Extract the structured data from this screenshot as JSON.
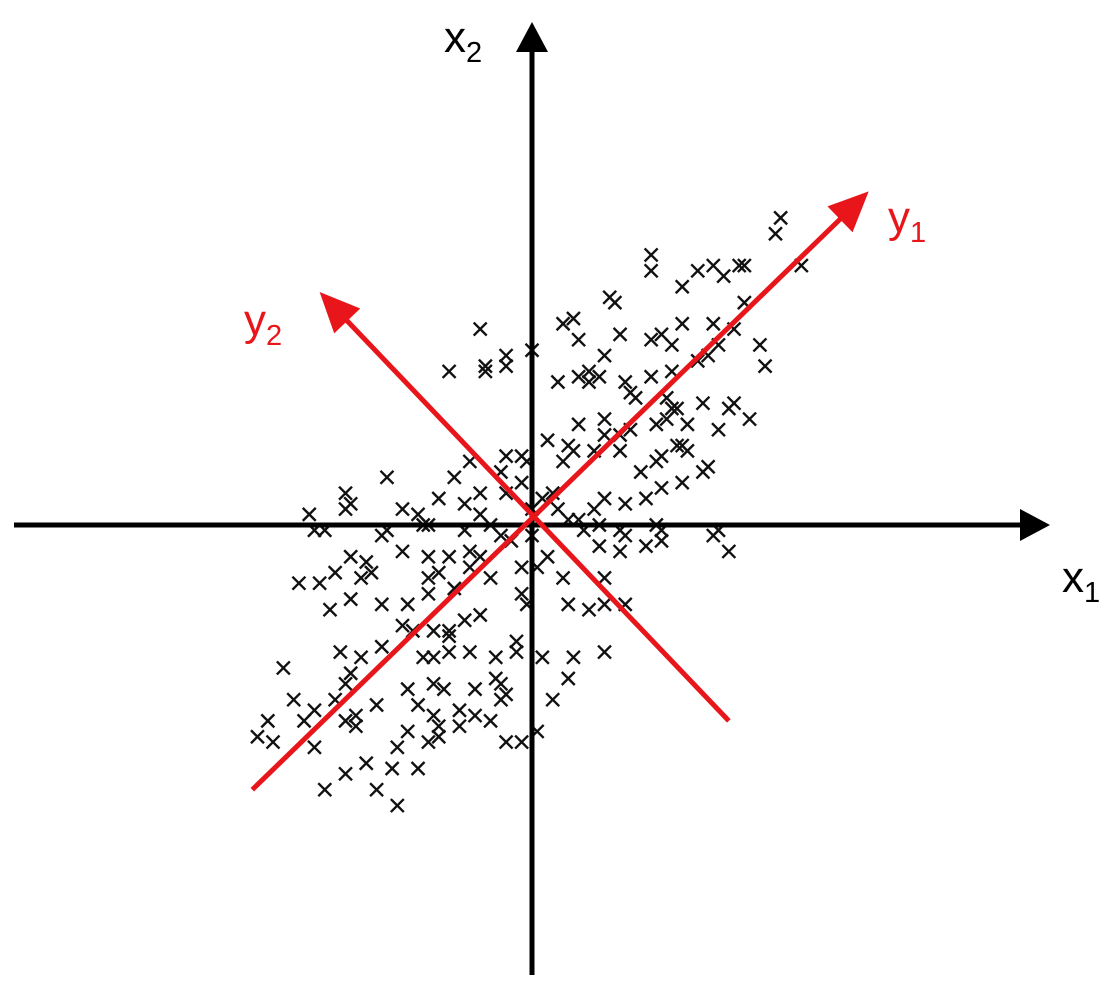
{
  "chart_data": {
    "type": "scatter",
    "marker": "x",
    "title": "",
    "axes": {
      "x1": {
        "label": "x",
        "subscript": "1",
        "color": "#000000"
      },
      "x2": {
        "label": "x",
        "subscript": "2",
        "color": "#000000"
      },
      "y1": {
        "label": "y",
        "subscript": "1",
        "color": "#e8161b"
      },
      "y2": {
        "label": "y",
        "subscript": "2",
        "color": "#e8161b"
      }
    },
    "xlim": [
      -1.0,
      1.0
    ],
    "ylim": [
      -0.85,
      0.95
    ],
    "grid": false,
    "legend": "none",
    "rotated_axes": {
      "y1": {
        "from": [
          -0.54,
          -0.5
        ],
        "to": [
          0.65,
          0.63
        ]
      },
      "y2": {
        "from": [
          0.38,
          -0.37
        ],
        "to": [
          -0.41,
          0.44
        ]
      }
    },
    "points": [
      [
        0.48,
        0.58
      ],
      [
        0.47,
        0.55
      ],
      [
        0.52,
        0.49
      ],
      [
        0.41,
        0.49
      ],
      [
        0.23,
        0.48
      ],
      [
        0.23,
        0.51
      ],
      [
        0.32,
        0.48
      ],
      [
        0.35,
        0.49
      ],
      [
        0.37,
        0.47
      ],
      [
        0.4,
        0.49
      ],
      [
        0.29,
        0.45
      ],
      [
        0.41,
        0.42
      ],
      [
        0.39,
        0.37
      ],
      [
        0.15,
        0.43
      ],
      [
        0.16,
        0.42
      ],
      [
        0.08,
        0.39
      ],
      [
        0.06,
        0.38
      ],
      [
        0.23,
        0.35
      ],
      [
        0.27,
        0.34
      ],
      [
        0.35,
        0.38
      ],
      [
        0.29,
        0.38
      ],
      [
        0.17,
        0.36
      ],
      [
        0.25,
        0.36
      ],
      [
        -0.1,
        0.37
      ],
      [
        0.09,
        0.35
      ],
      [
        0.14,
        0.32
      ],
      [
        0.0,
        0.33
      ],
      [
        0.36,
        0.34
      ],
      [
        0.34,
        0.32
      ],
      [
        0.44,
        0.34
      ],
      [
        0.45,
        0.3
      ],
      [
        0.32,
        0.31
      ],
      [
        0.27,
        0.29
      ],
      [
        -0.05,
        0.32
      ],
      [
        0.18,
        0.27
      ],
      [
        0.23,
        0.28
      ],
      [
        -0.09,
        0.3
      ],
      [
        -0.09,
        0.29
      ],
      [
        -0.16,
        0.29
      ],
      [
        -0.05,
        0.3
      ],
      [
        0.09,
        0.28
      ],
      [
        0.11,
        0.29
      ],
      [
        0.13,
        0.28
      ],
      [
        0.11,
        0.27
      ],
      [
        0.05,
        0.27
      ],
      [
        0.19,
        0.25
      ],
      [
        0.2,
        0.24
      ],
      [
        0.26,
        0.24
      ],
      [
        0.27,
        0.22
      ],
      [
        0.28,
        0.22
      ],
      [
        0.26,
        0.2
      ],
      [
        0.3,
        0.19
      ],
      [
        0.33,
        0.23
      ],
      [
        0.36,
        0.18
      ],
      [
        0.29,
        0.15
      ],
      [
        0.24,
        0.19
      ],
      [
        0.39,
        0.23
      ],
      [
        0.42,
        0.2
      ],
      [
        0.38,
        0.22
      ],
      [
        0.09,
        0.19
      ],
      [
        0.14,
        0.2
      ],
      [
        0.14,
        0.17
      ],
      [
        0.07,
        0.15
      ],
      [
        0.03,
        0.16
      ],
      [
        0.08,
        0.14
      ],
      [
        0.12,
        0.14
      ],
      [
        0.17,
        0.17
      ],
      [
        0.19,
        0.18
      ],
      [
        0.17,
        0.14
      ],
      [
        0.25,
        0.13
      ],
      [
        0.24,
        0.12
      ],
      [
        0.28,
        0.15
      ],
      [
        0.3,
        0.14
      ],
      [
        0.25,
        0.07
      ],
      [
        0.21,
        0.1
      ],
      [
        0.34,
        0.11
      ],
      [
        0.33,
        0.1
      ],
      [
        0.29,
        0.08
      ],
      [
        0.22,
        0.05
      ],
      [
        0.18,
        0.04
      ],
      [
        0.14,
        0.05
      ],
      [
        0.12,
        0.03
      ],
      [
        0.06,
        0.12
      ],
      [
        -0.02,
        0.13
      ],
      [
        -0.01,
        0.12
      ],
      [
        -0.02,
        0.08
      ],
      [
        0.02,
        0.05
      ],
      [
        0.04,
        0.06
      ],
      [
        -0.05,
        0.13
      ],
      [
        -0.12,
        0.12
      ],
      [
        -0.15,
        0.09
      ],
      [
        -0.06,
        0.1
      ],
      [
        -0.1,
        0.06
      ],
      [
        -0.05,
        0.06
      ],
      [
        -0.1,
        0.02
      ],
      [
        -0.13,
        0.04
      ],
      [
        -0.18,
        0.05
      ],
      [
        -0.25,
        0.03
      ],
      [
        -0.28,
        0.09
      ],
      [
        -0.36,
        0.06
      ],
      [
        -0.43,
        0.02
      ],
      [
        -0.35,
        0.04
      ],
      [
        -0.36,
        0.03
      ],
      [
        -0.28,
        -0.01
      ],
      [
        -0.42,
        -0.01
      ],
      [
        -0.4,
        -0.01
      ],
      [
        -0.29,
        -0.02
      ],
      [
        -0.21,
        0.0
      ],
      [
        -0.2,
        0.0
      ],
      [
        -0.22,
        0.02
      ],
      [
        -0.13,
        -0.01
      ],
      [
        -0.08,
        0.0
      ],
      [
        -0.06,
        -0.02
      ],
      [
        0.0,
        0.03
      ],
      [
        0.05,
        0.03
      ],
      [
        0.07,
        0.01
      ],
      [
        0.09,
        0.01
      ],
      [
        0.13,
        0.0
      ],
      [
        0.17,
        -0.01
      ],
      [
        0.24,
        0.0
      ],
      [
        0.25,
        -0.01
      ],
      [
        0.35,
        -0.02
      ],
      [
        0.36,
        -0.01
      ],
      [
        0.38,
        -0.05
      ],
      [
        0.25,
        -0.03
      ],
      [
        0.18,
        -0.02
      ],
      [
        0.22,
        -0.04
      ],
      [
        0.17,
        -0.05
      ],
      [
        0.13,
        -0.04
      ],
      [
        0.1,
        -0.01
      ],
      [
        -0.0,
        -0.02
      ],
      [
        -0.04,
        -0.03
      ],
      [
        -0.1,
        -0.06
      ],
      [
        -0.12,
        -0.05
      ],
      [
        -0.16,
        -0.06
      ],
      [
        -0.2,
        -0.06
      ],
      [
        -0.25,
        -0.05
      ],
      [
        -0.32,
        -0.07
      ],
      [
        -0.35,
        -0.06
      ],
      [
        -0.33,
        -0.1
      ],
      [
        -0.31,
        -0.09
      ],
      [
        -0.38,
        -0.09
      ],
      [
        -0.45,
        -0.11
      ],
      [
        -0.41,
        -0.11
      ],
      [
        -0.35,
        -0.14
      ],
      [
        -0.39,
        -0.16
      ],
      [
        -0.29,
        -0.15
      ],
      [
        -0.24,
        -0.15
      ],
      [
        -0.2,
        -0.1
      ],
      [
        -0.18,
        -0.09
      ],
      [
        -0.2,
        -0.13
      ],
      [
        -0.15,
        -0.12
      ],
      [
        -0.12,
        -0.08
      ],
      [
        -0.08,
        -0.1
      ],
      [
        -0.02,
        -0.08
      ],
      [
        0.01,
        -0.08
      ],
      [
        0.03,
        -0.06
      ],
      [
        -0.02,
        -0.13
      ],
      [
        -0.01,
        -0.15
      ],
      [
        0.07,
        -0.15
      ],
      [
        0.11,
        -0.16
      ],
      [
        0.14,
        -0.15
      ],
      [
        0.18,
        -0.15
      ],
      [
        0.14,
        -0.1
      ],
      [
        0.06,
        -0.1
      ],
      [
        -0.1,
        -0.17
      ],
      [
        -0.13,
        -0.18
      ],
      [
        -0.16,
        -0.2
      ],
      [
        -0.19,
        -0.2
      ],
      [
        -0.23,
        -0.2
      ],
      [
        -0.25,
        -0.19
      ],
      [
        -0.29,
        -0.23
      ],
      [
        -0.33,
        -0.25
      ],
      [
        -0.37,
        -0.24
      ],
      [
        -0.35,
        -0.28
      ],
      [
        -0.36,
        -0.3
      ],
      [
        -0.38,
        -0.33
      ],
      [
        -0.42,
        -0.35
      ],
      [
        -0.48,
        -0.27
      ],
      [
        -0.46,
        -0.33
      ],
      [
        -0.51,
        -0.37
      ],
      [
        -0.5,
        -0.41
      ],
      [
        -0.53,
        -0.4
      ],
      [
        -0.44,
        -0.37
      ],
      [
        -0.42,
        -0.42
      ],
      [
        -0.36,
        -0.37
      ],
      [
        -0.34,
        -0.36
      ],
      [
        -0.34,
        -0.38
      ],
      [
        -0.3,
        -0.34
      ],
      [
        -0.24,
        -0.31
      ],
      [
        -0.22,
        -0.34
      ],
      [
        -0.21,
        -0.25
      ],
      [
        -0.19,
        -0.25
      ],
      [
        -0.16,
        -0.24
      ],
      [
        -0.16,
        -0.21
      ],
      [
        -0.12,
        -0.24
      ],
      [
        -0.07,
        -0.25
      ],
      [
        -0.03,
        -0.22
      ],
      [
        -0.03,
        -0.24
      ],
      [
        0.02,
        -0.25
      ],
      [
        0.08,
        -0.25
      ],
      [
        0.14,
        -0.24
      ],
      [
        -0.07,
        -0.29
      ],
      [
        -0.06,
        -0.3
      ],
      [
        -0.05,
        -0.32
      ],
      [
        -0.06,
        -0.33
      ],
      [
        -0.08,
        -0.37
      ],
      [
        -0.11,
        -0.36
      ],
      [
        -0.11,
        -0.31
      ],
      [
        -0.17,
        -0.31
      ],
      [
        -0.19,
        -0.3
      ],
      [
        -0.19,
        -0.36
      ],
      [
        -0.18,
        -0.38
      ],
      [
        -0.18,
        -0.4
      ],
      [
        -0.2,
        -0.41
      ],
      [
        -0.24,
        -0.39
      ],
      [
        -0.26,
        -0.42
      ],
      [
        -0.22,
        -0.46
      ],
      [
        -0.27,
        -0.46
      ],
      [
        -0.32,
        -0.45
      ],
      [
        -0.36,
        -0.47
      ],
      [
        -0.4,
        -0.5
      ],
      [
        -0.3,
        -0.5
      ],
      [
        -0.26,
        -0.53
      ],
      [
        -0.14,
        -0.35
      ],
      [
        -0.14,
        -0.38
      ],
      [
        -0.02,
        -0.41
      ],
      [
        -0.05,
        -0.41
      ],
      [
        0.01,
        -0.39
      ],
      [
        0.04,
        -0.33
      ],
      [
        0.07,
        -0.29
      ]
    ]
  }
}
